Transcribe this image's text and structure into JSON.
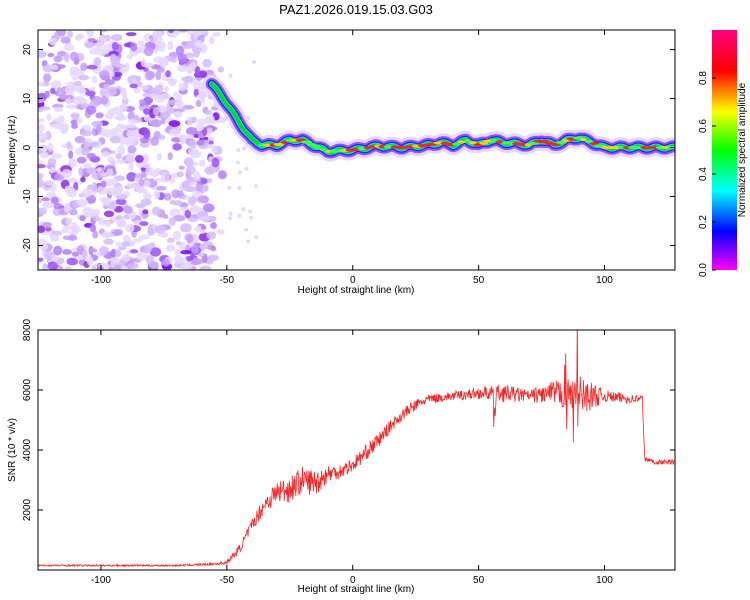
{
  "title": "PAZ1.2026.019.15.03.G03",
  "chart_data": [
    {
      "type": "heatmap",
      "name": "spectrogram",
      "xlabel": "Height of straight line (km)",
      "ylabel": "Frequency (Hz)",
      "xlim": [
        -125,
        128
      ],
      "ylim": [
        -25,
        24
      ],
      "x_ticks": [
        -100,
        -50,
        0,
        50,
        100
      ],
      "y_ticks": [
        -20,
        -10,
        0,
        10,
        20
      ],
      "colorbar": {
        "label": "Normalized spectral amplitude",
        "range": [
          0,
          1
        ],
        "ticks": [
          0.0,
          0.2,
          0.4,
          0.6,
          0.8
        ],
        "tick_labels": [
          "0.0",
          "0.2",
          "0.4",
          "0.6",
          "0.8"
        ],
        "colormap": [
          "#ff00ff",
          "#0000ff",
          "#00ffff",
          "#00ff00",
          "#ffff00",
          "#ff0000",
          "#ff0080"
        ]
      },
      "noise_region": {
        "x_range": [
          -125,
          -50
        ],
        "freq_range": [
          -25,
          24
        ],
        "amplitude": "0.0-0.2"
      },
      "ridge": {
        "x": [
          -56,
          -50,
          -45,
          -40,
          -36,
          -30,
          -25,
          -20,
          -15,
          -10,
          0,
          10,
          20,
          30,
          35,
          40,
          45,
          50,
          55,
          60,
          65,
          70,
          75,
          80,
          85,
          90,
          100,
          110,
          120,
          128
        ],
        "freq": [
          13,
          9,
          5,
          1.5,
          0.5,
          0.5,
          1.5,
          1.5,
          0.3,
          -0.8,
          -0.5,
          0.3,
          0,
          0.5,
          1,
          0.5,
          1.5,
          0.5,
          1.5,
          1,
          0.8,
          0.5,
          1.5,
          0.5,
          1.5,
          2,
          0,
          0,
          0,
          0
        ]
      },
      "text": {
        "x_tick_labels": [
          "-100",
          "-50",
          "0",
          "50",
          "100"
        ],
        "y_tick_labels": [
          "-20",
          "-10",
          "0",
          "10",
          "20"
        ]
      }
    },
    {
      "type": "line",
      "name": "snr",
      "xlabel": "Height of straight line (km)",
      "ylabel": "SNR (10 * v/v)",
      "xlim": [
        -125,
        128
      ],
      "ylim": [
        0,
        8000
      ],
      "x_ticks": [
        -100,
        -50,
        0,
        50,
        100
      ],
      "y_ticks": [
        2000,
        4000,
        6000,
        8000
      ],
      "color": "#ff2222",
      "series": [
        {
          "name": "SNR",
          "x": [
            -125,
            -100,
            -70,
            -55,
            -50,
            -45,
            -40,
            -35,
            -30,
            -25,
            -20,
            -15,
            -10,
            -5,
            0,
            5,
            10,
            15,
            20,
            25,
            30,
            40,
            50,
            60,
            70,
            80,
            90,
            100,
            110,
            115,
            116,
            120,
            128
          ],
          "values": [
            150,
            150,
            150,
            200,
            250,
            700,
            1500,
            2200,
            2600,
            2700,
            3000,
            2900,
            3200,
            3300,
            3500,
            3900,
            4300,
            4800,
            5200,
            5500,
            5700,
            5800,
            5900,
            5900,
            5800,
            5900,
            5800,
            5800,
            5700,
            5700,
            3700,
            3600,
            3600
          ],
          "noise_amp": [
            30,
            30,
            30,
            40,
            60,
            150,
            200,
            300,
            400,
            450,
            450,
            450,
            300,
            250,
            250,
            250,
            250,
            200,
            200,
            200,
            150,
            150,
            200,
            300,
            200,
            400,
            700,
            200,
            150,
            150,
            80,
            80,
            80
          ]
        }
      ],
      "text": {
        "x_tick_labels": [
          "-100",
          "-50",
          "0",
          "50",
          "100"
        ],
        "y_tick_labels": [
          "2000",
          "4000",
          "6000",
          "8000"
        ]
      }
    }
  ]
}
